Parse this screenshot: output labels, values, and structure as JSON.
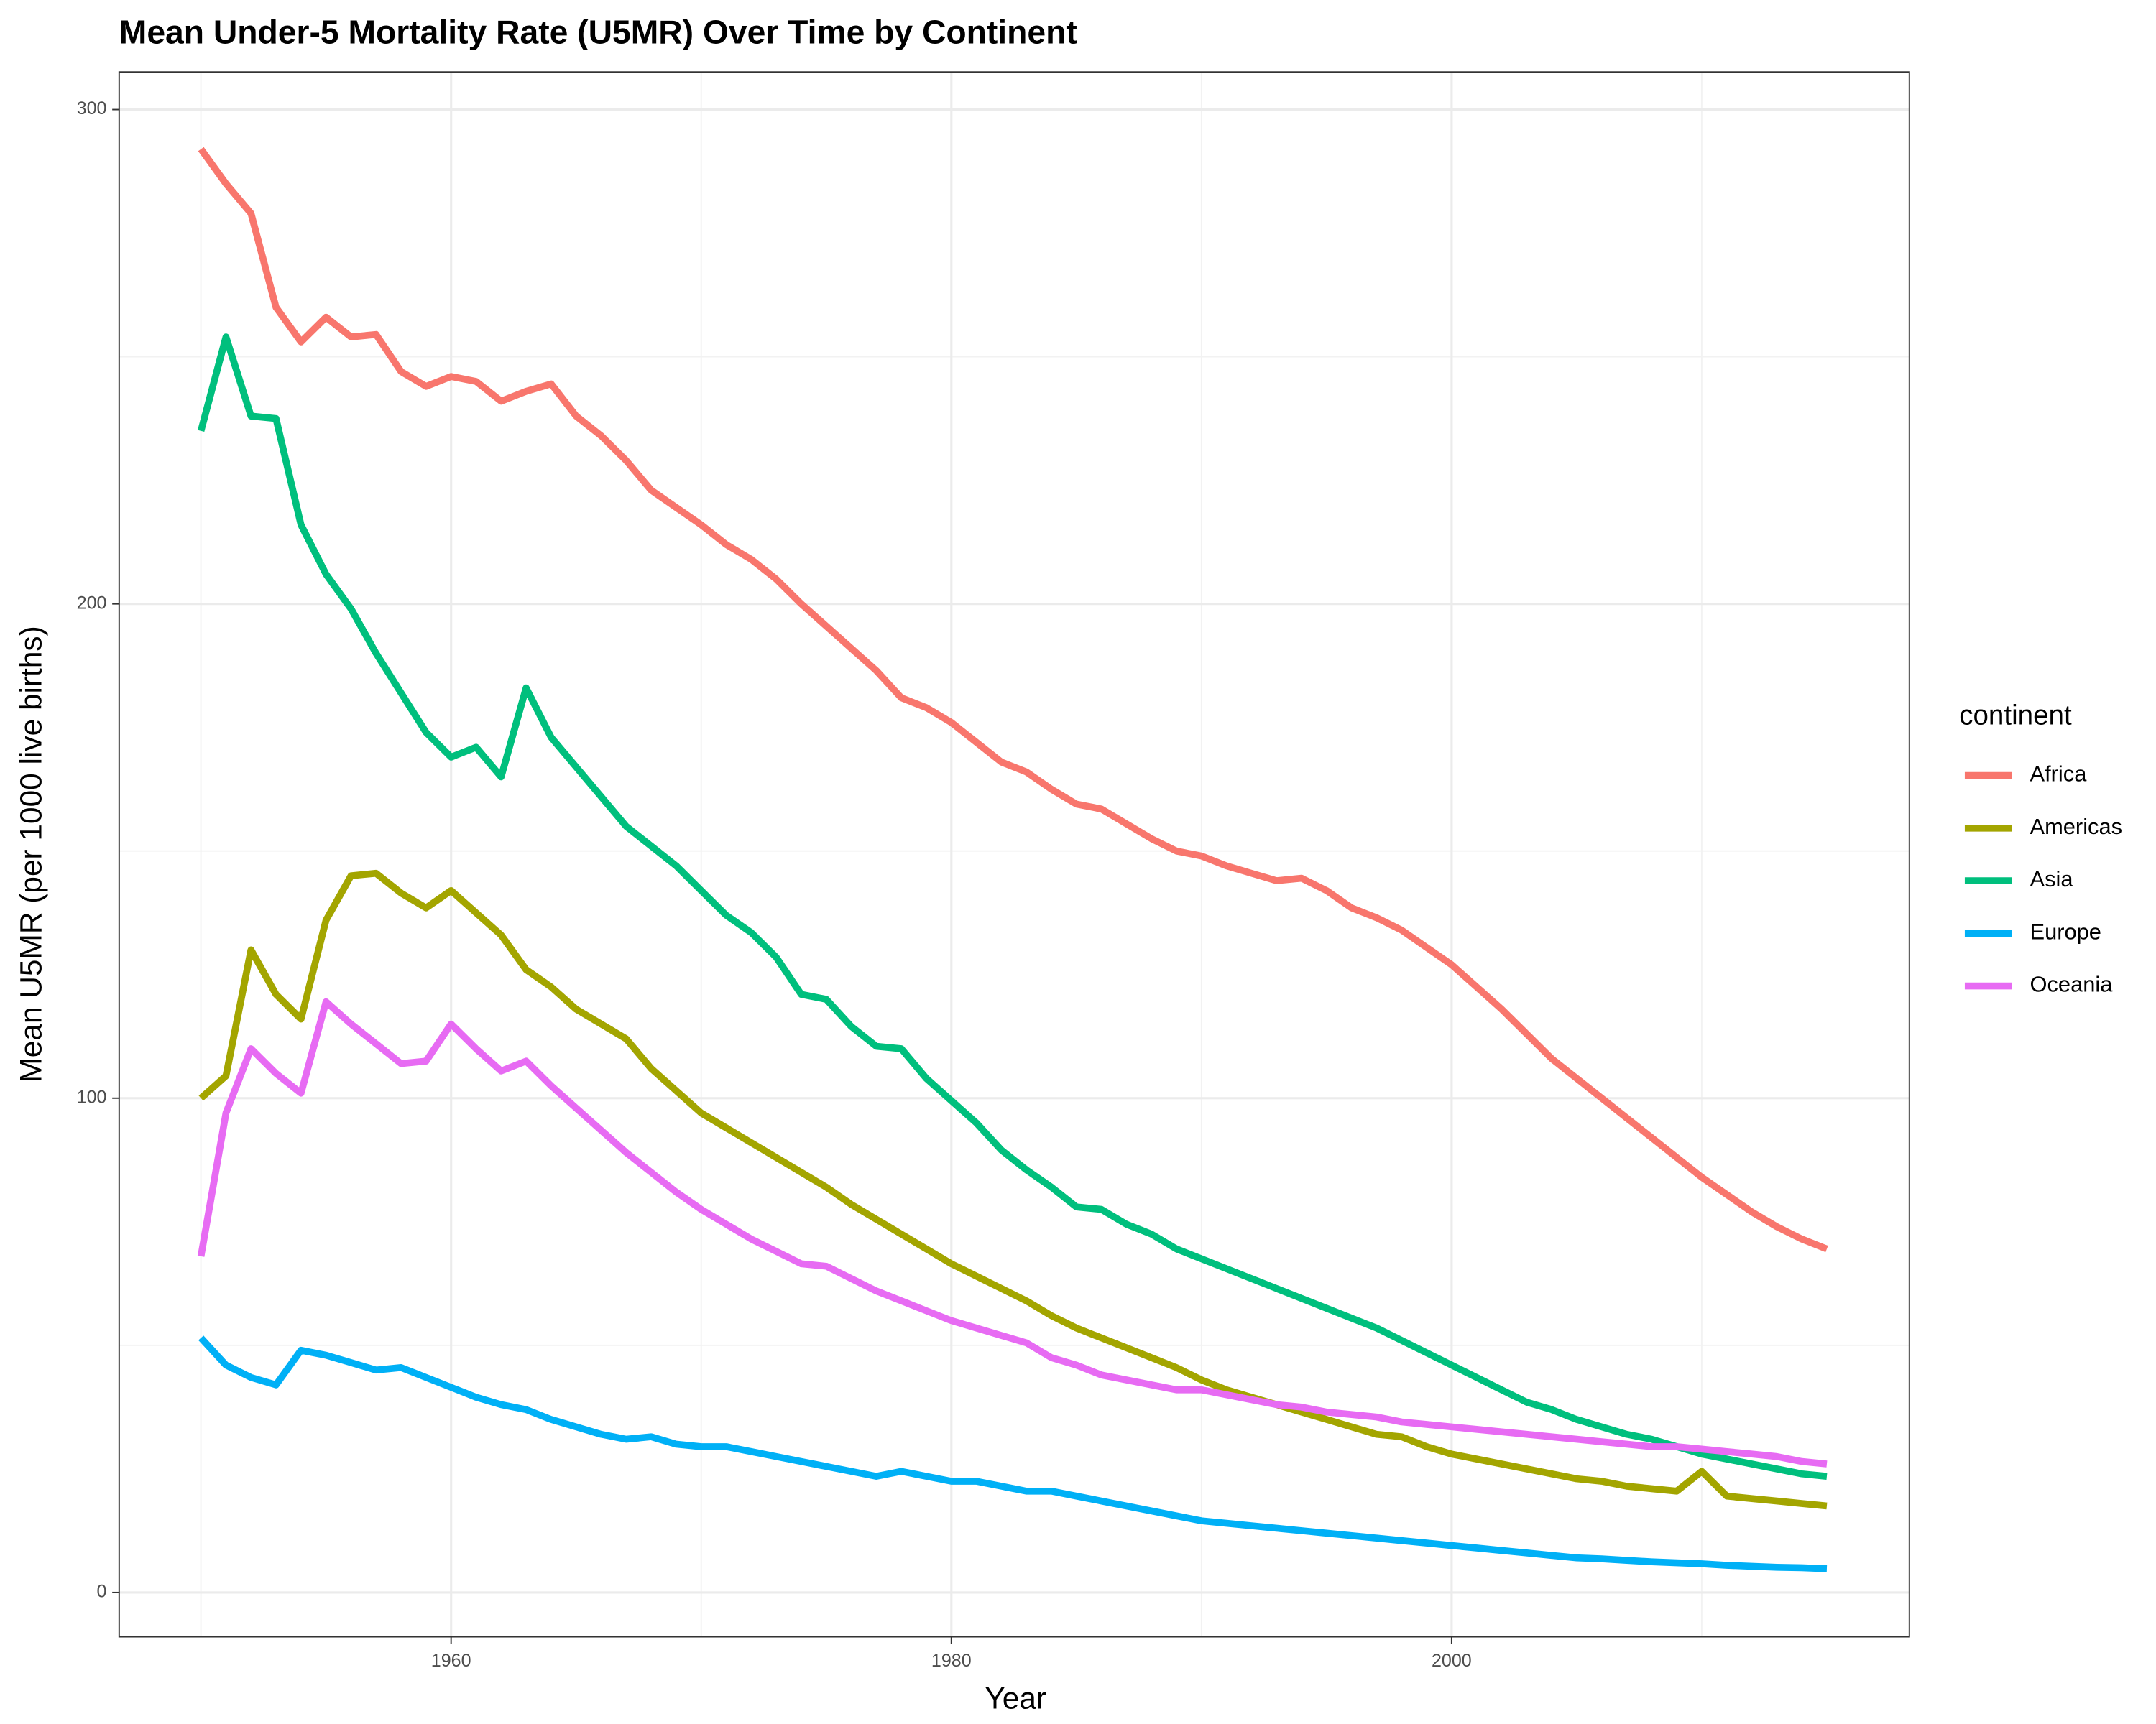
{
  "chart_data": {
    "type": "line",
    "title": "Mean Under-5 Mortality Rate (U5MR) Over Time by Continent",
    "x_label": "Year",
    "y_label": "Mean U5MR (per 1000 live births)",
    "legend_title": "continent",
    "legend_position": "right",
    "grid": true,
    "xlim": [
      1946.73,
      2018.3
    ],
    "ylim": [
      -8.96,
      307.6
    ],
    "xticks": [
      1960,
      1980,
      2000
    ],
    "yticks": [
      0,
      100,
      200,
      300
    ],
    "x": [
      1950,
      1951,
      1952,
      1953,
      1954,
      1955,
      1956,
      1957,
      1958,
      1959,
      1960,
      1961,
      1962,
      1963,
      1964,
      1965,
      1966,
      1967,
      1968,
      1969,
      1970,
      1971,
      1972,
      1973,
      1974,
      1975,
      1976,
      1977,
      1978,
      1979,
      1980,
      1981,
      1982,
      1983,
      1984,
      1985,
      1986,
      1987,
      1988,
      1989,
      1990,
      1991,
      1992,
      1993,
      1994,
      1995,
      1996,
      1997,
      1998,
      1999,
      2000,
      2001,
      2002,
      2003,
      2004,
      2005,
      2006,
      2007,
      2008,
      2009,
      2010,
      2011,
      2012,
      2013,
      2014,
      2015
    ],
    "series": [
      {
        "name": "Africa",
        "color": "#F8766D",
        "values": [
          292,
          285,
          279,
          260,
          253,
          258,
          254,
          254.5,
          247,
          244,
          246,
          245,
          241,
          243,
          244.5,
          238,
          234,
          229,
          223,
          219.5,
          216,
          212,
          209,
          205,
          200,
          195.5,
          191,
          186.5,
          181,
          179,
          176,
          172,
          168,
          166,
          162.5,
          159.5,
          158.5,
          155.5,
          152.5,
          150,
          149,
          147,
          145.5,
          144,
          144.5,
          142,
          138.5,
          136.5,
          134,
          130.5,
          127,
          122.5,
          118,
          113,
          108,
          104,
          100,
          96,
          92,
          88,
          84,
          80.5,
          77,
          74,
          71.5,
          69.5
        ]
      },
      {
        "name": "Americas",
        "color": "#A3A500",
        "values": [
          100,
          104.5,
          130,
          121,
          116,
          136,
          145,
          145.5,
          141.5,
          138.5,
          142,
          137.5,
          133,
          126,
          122.5,
          118,
          115,
          112,
          106,
          101.5,
          97,
          94,
          91,
          88,
          85,
          82,
          78.5,
          75.5,
          72.5,
          69.5,
          66.5,
          64,
          61.5,
          59,
          56,
          53.5,
          51.5,
          49.5,
          47.5,
          45.5,
          43,
          41,
          39.5,
          38,
          36.5,
          35,
          33.5,
          32,
          31.5,
          29.5,
          28,
          27,
          26,
          25,
          24,
          23,
          22.5,
          21.5,
          21,
          20.5,
          24.5,
          19.5,
          19,
          18.5,
          18,
          17.5
        ]
      },
      {
        "name": "Asia",
        "color": "#00BF7D",
        "values": [
          235,
          254,
          238,
          237.5,
          216,
          206,
          199,
          190,
          182,
          174,
          169,
          171,
          165,
          183,
          173,
          167,
          161,
          155,
          151,
          147,
          142,
          137,
          133.5,
          128.5,
          121,
          120,
          114.5,
          110.5,
          110,
          104,
          99.5,
          95,
          89.5,
          85.5,
          82,
          78,
          77.5,
          74.5,
          72.5,
          69.5,
          67.5,
          65.5,
          63.5,
          61.5,
          59.5,
          57.5,
          55.5,
          53.5,
          51,
          48.5,
          46,
          43.5,
          41,
          38.5,
          37,
          35,
          33.5,
          32,
          31,
          29.5,
          28,
          27,
          26,
          25,
          24,
          23.5
        ]
      },
      {
        "name": "Europe",
        "color": "#00B0F6",
        "values": [
          51.5,
          46,
          43.5,
          42,
          49,
          48,
          46.5,
          45,
          45.5,
          43.5,
          41.5,
          39.5,
          38,
          37,
          35,
          33.5,
          32,
          31,
          31.5,
          30,
          29.5,
          29.5,
          28.5,
          27.5,
          26.5,
          25.5,
          24.5,
          23.5,
          24.5,
          23.5,
          22.5,
          22.5,
          21.5,
          20.5,
          20.5,
          19.5,
          18.5,
          17.5,
          16.5,
          15.5,
          14.5,
          14,
          13.5,
          13,
          12.5,
          12,
          11.5,
          11,
          10.5,
          10,
          9.5,
          9,
          8.5,
          8,
          7.5,
          7,
          6.8,
          6.5,
          6.2,
          6,
          5.8,
          5.5,
          5.3,
          5.1,
          5,
          4.8
        ]
      },
      {
        "name": "Oceania",
        "color": "#E76BF3",
        "values": [
          68,
          97,
          110,
          105,
          101,
          119.5,
          115,
          111,
          107,
          107.5,
          115,
          110,
          105.5,
          107.5,
          102.5,
          98,
          93.5,
          89,
          85,
          81,
          77.5,
          74.5,
          71.5,
          69,
          66.5,
          66,
          63.5,
          61,
          59,
          57,
          55,
          53.5,
          52,
          50.5,
          47.5,
          46,
          44,
          43,
          42,
          41,
          41,
          40,
          39,
          38,
          37.5,
          36.5,
          36,
          35.5,
          34.5,
          34,
          33.5,
          33,
          32.5,
          32,
          31.5,
          31,
          30.5,
          30,
          29.5,
          29.5,
          29,
          28.5,
          28,
          27.5,
          26.5,
          26
        ]
      }
    ]
  }
}
